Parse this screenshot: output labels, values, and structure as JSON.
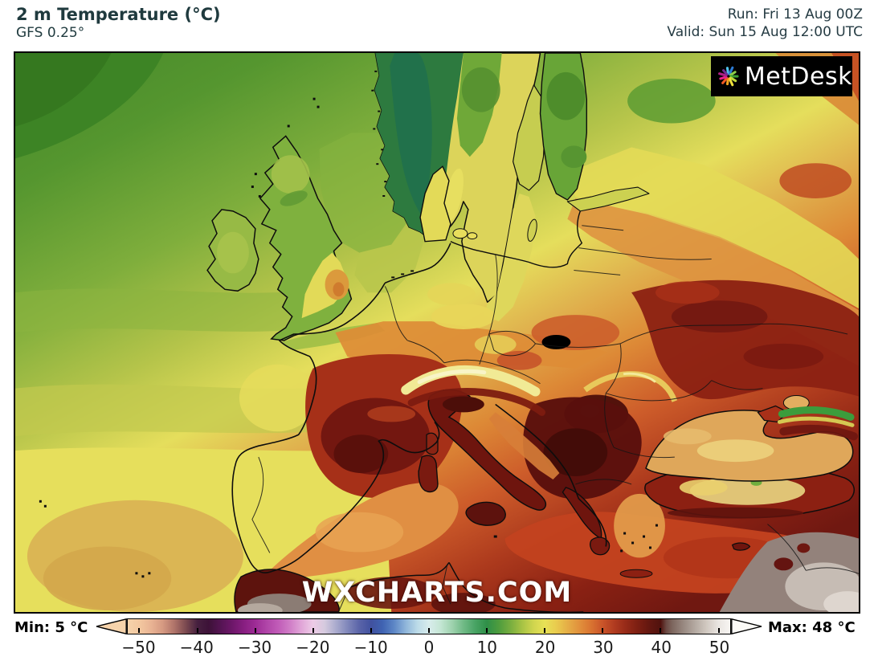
{
  "header": {
    "title": "2 m Temperature (°C)",
    "subtitle": "GFS 0.25°",
    "run_line": "Run: Fri 13 Aug 00Z",
    "valid_line": "Valid: Sun 15 Aug 12:00 UTC",
    "text_color": "#1f3a3e"
  },
  "map": {
    "watermark": "WXCHARTS.COM",
    "logo": {
      "text": "MetDesk",
      "bg": "#000000",
      "text_color": "#ffffff",
      "pinwheel_colors": [
        "#4fc4ef",
        "#2b7bd4",
        "#8ed04b",
        "#3e9e35",
        "#bfd93a",
        "#f0e13b",
        "#f5a51f",
        "#ef5a24",
        "#e8218c",
        "#b01e86",
        "#6f2c91"
      ]
    },
    "border_color": "#000000",
    "palette": {
      "sea_med_west": "#e08f43",
      "sea_med_east": "#c2421f",
      "sea_aegean": "#e29a4a",
      "sea_black": "#dfa75a",
      "sea_baltic": "#ded75b",
      "sea_bothnia": "#c6cd50",
      "sea_channel": "#9fbf46",
      "sea_biscay": "#e4dc5b",
      "land_iberia": "#671510",
      "land_france": "#a63018",
      "land_france_core": "#731710",
      "land_italy": "#6e150e",
      "land_balkans": "#5a100c",
      "land_turkey": "#8c2012",
      "land_greece": "#6e150e",
      "land_morocco": "#5d130d",
      "norway_mountains": "#2d7a3f",
      "norway_core": "#20704d",
      "scandinavia_land": "#dcd45a",
      "finland_land": "#68a537",
      "uk_land": "#7fb13e",
      "ireland_land": "#97ba45",
      "denmark_land": "#e3da58",
      "hot_gray": "#8b7c74",
      "hot_gray_light": "#c0b6ae",
      "mideast_gray": "#93827b",
      "mideast_gray_light": "#c6bcb4",
      "alps_ridge": "#f1ea95",
      "turkey_interior": "#e5cd7c",
      "black_sea_pale": "#ecd27c",
      "caucasus_green": "#3c9c3c",
      "east_dark_red": "#8c2113"
    }
  },
  "scale": {
    "min_label": "Min: 5 °C",
    "max_label": "Max: 48 °C",
    "domain": [
      -52,
      52
    ],
    "left_arrow_color": "#f6d3ab",
    "right_arrow_color": "#fbfaf7",
    "ticks": [
      {
        "v": -50,
        "label": "−50"
      },
      {
        "v": -40,
        "label": "−40"
      },
      {
        "v": -30,
        "label": "−30"
      },
      {
        "v": -20,
        "label": "−20"
      },
      {
        "v": -10,
        "label": "−10"
      },
      {
        "v": 0,
        "label": "0"
      },
      {
        "v": 10,
        "label": "10"
      },
      {
        "v": 20,
        "label": "20"
      },
      {
        "v": 30,
        "label": "30"
      },
      {
        "v": 40,
        "label": "40"
      },
      {
        "v": 50,
        "label": "50"
      }
    ],
    "stops": [
      {
        "v": -52,
        "c": "#f6d3ab"
      },
      {
        "v": -50,
        "c": "#f3c8a0"
      },
      {
        "v": -48,
        "c": "#e9b494"
      },
      {
        "v": -46,
        "c": "#d69a82"
      },
      {
        "v": -44,
        "c": "#b0746a"
      },
      {
        "v": -42,
        "c": "#7c4a50"
      },
      {
        "v": -40,
        "c": "#46203f"
      },
      {
        "v": -38,
        "c": "#3d1238"
      },
      {
        "v": -36,
        "c": "#541452"
      },
      {
        "v": -34,
        "c": "#6d1769"
      },
      {
        "v": -32,
        "c": "#871e80"
      },
      {
        "v": -30,
        "c": "#9d2b95"
      },
      {
        "v": -28,
        "c": "#b045a8"
      },
      {
        "v": -26,
        "c": "#c15cb8"
      },
      {
        "v": -24,
        "c": "#d07dc7"
      },
      {
        "v": -22,
        "c": "#e1a6d8"
      },
      {
        "v": -20,
        "c": "#edcbe6"
      },
      {
        "v": -18,
        "c": "#d5cade"
      },
      {
        "v": -16,
        "c": "#a9aacd"
      },
      {
        "v": -14,
        "c": "#7f86ba"
      },
      {
        "v": -12,
        "c": "#5a64a8"
      },
      {
        "v": -10,
        "c": "#41519f"
      },
      {
        "v": -8,
        "c": "#3f63b2"
      },
      {
        "v": -6,
        "c": "#5e87c6"
      },
      {
        "v": -4,
        "c": "#8fb5da"
      },
      {
        "v": -2,
        "c": "#bcdbe8"
      },
      {
        "v": 0,
        "c": "#d8ecec"
      },
      {
        "v": 2,
        "c": "#c4e6d4"
      },
      {
        "v": 4,
        "c": "#9ed2ae"
      },
      {
        "v": 6,
        "c": "#6fb985"
      },
      {
        "v": 8,
        "c": "#48a364"
      },
      {
        "v": 10,
        "c": "#2f8f48"
      },
      {
        "v": 12,
        "c": "#4d9c3e"
      },
      {
        "v": 14,
        "c": "#76ad3f"
      },
      {
        "v": 16,
        "c": "#a5c244"
      },
      {
        "v": 18,
        "c": "#cfd54e"
      },
      {
        "v": 20,
        "c": "#e8e156"
      },
      {
        "v": 22,
        "c": "#e9cb4e"
      },
      {
        "v": 24,
        "c": "#e5ad46"
      },
      {
        "v": 26,
        "c": "#e1903c"
      },
      {
        "v": 28,
        "c": "#d97331"
      },
      {
        "v": 30,
        "c": "#c95429"
      },
      {
        "v": 32,
        "c": "#b03b20"
      },
      {
        "v": 34,
        "c": "#962a18"
      },
      {
        "v": 36,
        "c": "#7d1f12"
      },
      {
        "v": 38,
        "c": "#641710"
      },
      {
        "v": 40,
        "c": "#50120e"
      },
      {
        "v": 41,
        "c": "#6b4a44"
      },
      {
        "v": 42,
        "c": "#7d665e"
      },
      {
        "v": 44,
        "c": "#998a82"
      },
      {
        "v": 46,
        "c": "#b5aaa2"
      },
      {
        "v": 48,
        "c": "#d2cac2"
      },
      {
        "v": 50,
        "c": "#eae6e2"
      },
      {
        "v": 52,
        "c": "#f7f5f2"
      }
    ]
  }
}
